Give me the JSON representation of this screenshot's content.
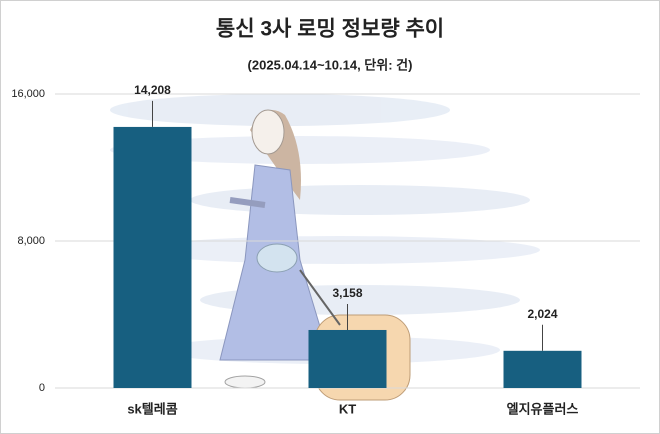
{
  "chart_data": {
    "type": "bar",
    "title": "통신 3사 로밍 정보량 추이",
    "subtitle": "(2025.04.14~10.14, 단위: 건)",
    "categories": [
      "sk텔레콤",
      "KT",
      "엘지유플러스"
    ],
    "values": [
      14208,
      3158,
      2024
    ],
    "value_labels": [
      "14,208",
      "3,158",
      "2,024"
    ],
    "color": "#175f80",
    "ylim": [
      0,
      16000
    ],
    "yticks": [
      0,
      {
        "value": 8000,
        "label": "8,000"
      },
      {
        "value": 16000,
        "label": "16,000"
      }
    ],
    "grid": true
  }
}
